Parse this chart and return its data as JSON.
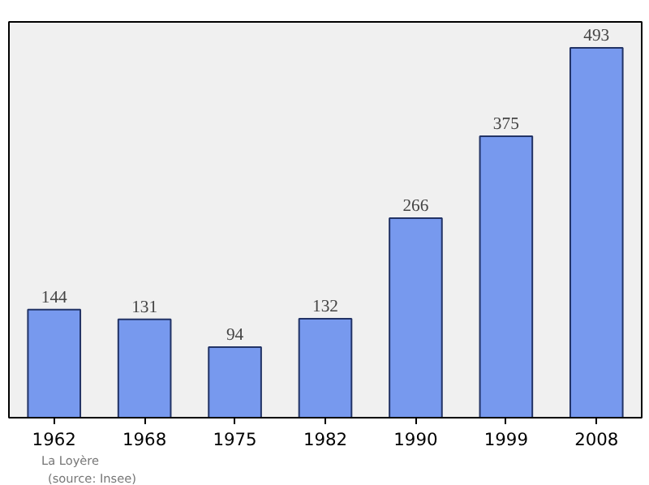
{
  "chart_data": {
    "type": "bar",
    "categories": [
      "1962",
      "1968",
      "1975",
      "1982",
      "1990",
      "1999",
      "2008"
    ],
    "values": [
      144,
      131,
      94,
      132,
      266,
      375,
      493
    ],
    "color": "#7799ee",
    "data_labels": true,
    "grid": false,
    "annotations": [
      "La Loyère",
      "(source: Insee)"
    ]
  }
}
